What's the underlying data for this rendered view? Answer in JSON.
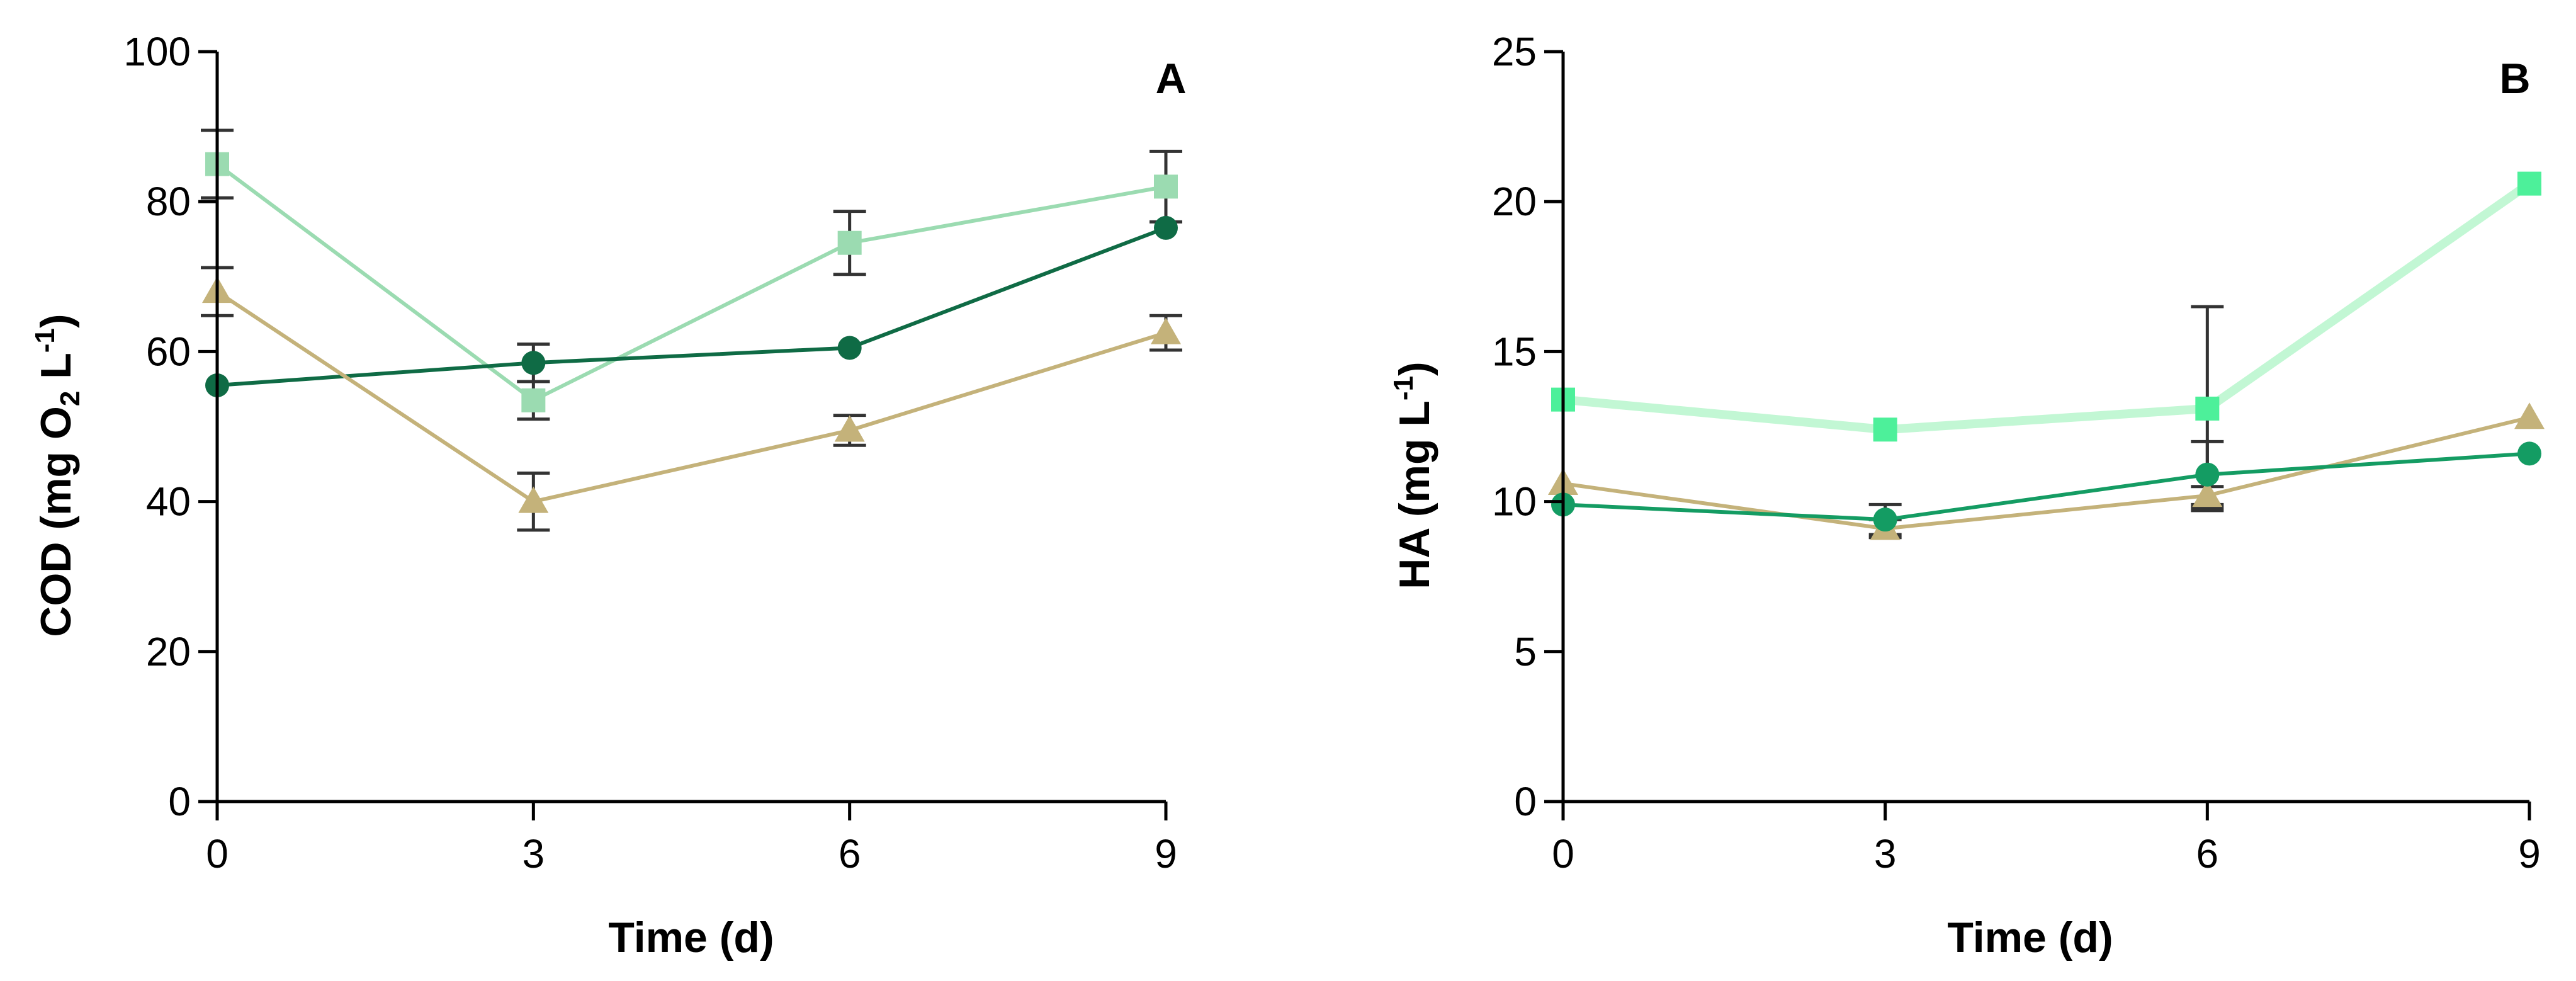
{
  "chart_data": [
    {
      "type": "line",
      "panel_label": "A",
      "xlabel": "Time (d)",
      "ylabel": {
        "prefix": "COD (mg O",
        "sub": "2",
        "mid": " L",
        "sup": "-1",
        "suffix": ")"
      },
      "x": [
        0,
        3,
        6,
        9
      ],
      "xticks": [
        "0",
        "3",
        "6",
        "9"
      ],
      "xlim": [
        0,
        9
      ],
      "ylim": [
        0,
        100
      ],
      "yticks": [
        "0",
        "20",
        "40",
        "60",
        "80",
        "100"
      ],
      "ytick_values": [
        0,
        20,
        40,
        60,
        80,
        100
      ],
      "series": [
        {
          "name": "square",
          "marker": "square",
          "color": "#9bdbb1",
          "values": [
            85,
            53.5,
            74.5,
            82
          ],
          "err": [
            4.5,
            2.5,
            4.2,
            4.7
          ]
        },
        {
          "name": "circle",
          "marker": "circle",
          "color": "#0f6b45",
          "values": [
            55.5,
            58.5,
            60.5,
            76.5
          ],
          "err": [
            0,
            2.5,
            0,
            0
          ]
        },
        {
          "name": "triangle",
          "marker": "triangle",
          "color": "#c4b27a",
          "values": [
            68,
            40,
            49.5,
            62.5
          ],
          "err": [
            3.2,
            3.8,
            2,
            2.3
          ]
        }
      ]
    },
    {
      "type": "line",
      "panel_label": "B",
      "xlabel": "Time (d)",
      "ylabel": {
        "prefix": "HA (mg L",
        "sub": "",
        "mid": "",
        "sup": "-1",
        "suffix": ")"
      },
      "x": [
        0,
        3,
        6,
        9
      ],
      "xticks": [
        "0",
        "3",
        "6",
        "9"
      ],
      "xlim": [
        0,
        9
      ],
      "ylim": [
        0,
        25
      ],
      "yticks": [
        "0",
        "5",
        "10",
        "15",
        "20",
        "25"
      ],
      "ytick_values": [
        0,
        5,
        10,
        15,
        20,
        25
      ],
      "series": [
        {
          "name": "square",
          "marker": "square",
          "color": "#4df09a",
          "light_line": "#c2f7d4",
          "values": [
            13.4,
            12.4,
            13.1,
            20.6
          ],
          "err": [
            0,
            0,
            3.4,
            0
          ]
        },
        {
          "name": "triangle",
          "marker": "triangle",
          "color": "#c4b27a",
          "values": [
            10.6,
            9.1,
            10.2,
            12.8
          ],
          "err": [
            0,
            0.3,
            0.3,
            0
          ]
        },
        {
          "name": "circle",
          "marker": "circle",
          "color": "#149c63",
          "values": [
            9.9,
            9.4,
            10.9,
            11.6
          ],
          "err": [
            0,
            0.5,
            1.1,
            0
          ]
        }
      ]
    }
  ]
}
